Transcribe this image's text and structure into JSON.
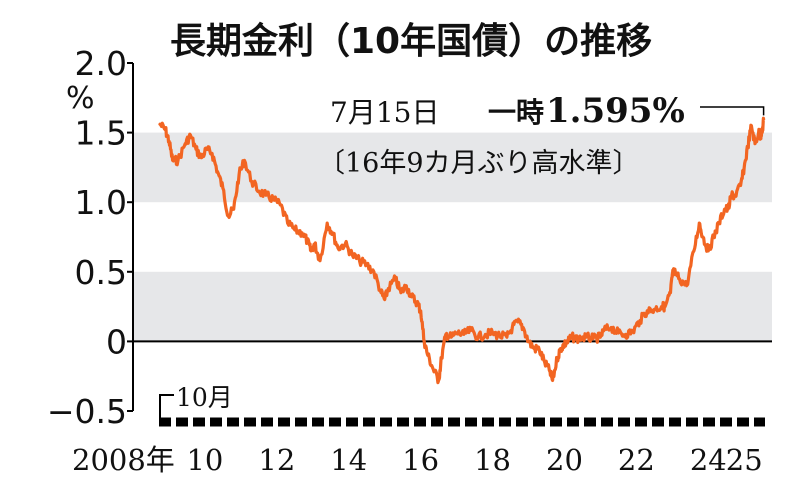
{
  "chart_data": {
    "type": "line",
    "title": "長期金利（10年国債）の推移",
    "ylabel": "%",
    "ylim": [
      -0.5,
      2.0
    ],
    "yticks": [
      {
        "value": 2.0,
        "label": "2.0"
      },
      {
        "value": 1.5,
        "label": "1.5"
      },
      {
        "value": 1.0,
        "label": "1.0"
      },
      {
        "value": 0.5,
        "label": "0.5"
      },
      {
        "value": 0,
        "label": "0"
      },
      {
        "value": -0.5,
        "label": "−0.5"
      }
    ],
    "shaded_bands": [
      [
        0,
        0.5
      ],
      [
        1.0,
        1.5
      ]
    ],
    "xlim": [
      2008.75,
      2025.55
    ],
    "xticks": [
      {
        "value": 2008.75,
        "label": "2008年"
      },
      {
        "value": 2010,
        "label": "10"
      },
      {
        "value": 2012,
        "label": "12"
      },
      {
        "value": 2014,
        "label": "14"
      },
      {
        "value": 2016,
        "label": "16"
      },
      {
        "value": 2018,
        "label": "18"
      },
      {
        "value": 2020,
        "label": "20"
      },
      {
        "value": 2022,
        "label": "22"
      },
      {
        "value": 2024,
        "label": "24"
      },
      {
        "value": 2025,
        "label": "25"
      }
    ],
    "start_marker_label": "10月",
    "annotation": {
      "date_label": "7月15日",
      "prefix": "一時",
      "value_label": "1.595%",
      "note": "〔16年9カ月ぶり高水準〕",
      "x": 2025.54,
      "y": 1.595
    },
    "colors": {
      "line": "#f26522",
      "band": "#e6e7e9",
      "axis": "#000000"
    },
    "series": [
      {
        "x": [
          2008.75,
          2008.9,
          2009.0,
          2009.1,
          2009.25,
          2009.45,
          2009.6,
          2009.75,
          2009.9,
          2010.05,
          2010.2,
          2010.35,
          2010.5,
          2010.65,
          2010.8,
          2010.95,
          2011.1,
          2011.3,
          2011.5,
          2011.7,
          2011.9,
          2012.1,
          2012.3,
          2012.5,
          2012.7,
          2012.85,
          2012.95,
          2013.05,
          2013.2,
          2013.4,
          2013.55,
          2013.7,
          2013.9,
          2014.1,
          2014.3,
          2014.5,
          2014.7,
          2014.9,
          2015.0,
          2015.1,
          2015.3,
          2015.45,
          2015.6,
          2015.75,
          2015.9,
          2016.0,
          2016.1,
          2016.2,
          2016.35,
          2016.5,
          2016.58,
          2016.7,
          2016.85,
          2017.0,
          2017.2,
          2017.4,
          2017.6,
          2017.8,
          2018.0,
          2018.2,
          2018.4,
          2018.55,
          2018.7,
          2018.85,
          2019.0,
          2019.15,
          2019.3,
          2019.45,
          2019.6,
          2019.67,
          2019.8,
          2019.9,
          2020.0,
          2020.1,
          2020.2,
          2020.4,
          2020.6,
          2020.8,
          2021.0,
          2021.1,
          2021.3,
          2021.5,
          2021.7,
          2021.9,
          2022.1,
          2022.3,
          2022.5,
          2022.7,
          2022.8,
          2022.95,
          2023.0,
          2023.05,
          2023.2,
          2023.4,
          2023.6,
          2023.75,
          2023.85,
          2024.0,
          2024.15,
          2024.3,
          2024.45,
          2024.55,
          2024.65,
          2024.75,
          2024.9,
          2025.0,
          2025.1,
          2025.2,
          2025.3,
          2025.4,
          2025.45,
          2025.5,
          2025.54
        ],
        "values": [
          1.56,
          1.52,
          1.44,
          1.3,
          1.3,
          1.42,
          1.48,
          1.38,
          1.32,
          1.38,
          1.35,
          1.22,
          1.1,
          0.9,
          0.95,
          1.2,
          1.3,
          1.15,
          1.08,
          1.05,
          1.02,
          0.98,
          0.85,
          0.8,
          0.78,
          0.72,
          0.65,
          0.7,
          0.58,
          0.85,
          0.78,
          0.67,
          0.7,
          0.62,
          0.58,
          0.55,
          0.5,
          0.35,
          0.3,
          0.38,
          0.45,
          0.35,
          0.4,
          0.32,
          0.28,
          0.22,
          0.0,
          -0.1,
          -0.2,
          -0.28,
          -0.12,
          0.05,
          0.03,
          0.06,
          0.05,
          0.08,
          0.03,
          0.05,
          0.06,
          0.04,
          0.03,
          0.1,
          0.14,
          0.1,
          0.0,
          -0.05,
          -0.06,
          -0.15,
          -0.22,
          -0.28,
          -0.12,
          -0.05,
          -0.02,
          0.0,
          0.03,
          0.02,
          0.03,
          0.02,
          0.03,
          0.08,
          0.1,
          0.06,
          0.05,
          0.07,
          0.15,
          0.22,
          0.23,
          0.25,
          0.25,
          0.35,
          0.48,
          0.5,
          0.45,
          0.4,
          0.65,
          0.85,
          0.75,
          0.65,
          0.75,
          0.85,
          0.95,
          0.95,
          1.05,
          1.05,
          1.12,
          1.25,
          1.4,
          1.55,
          1.42,
          1.5,
          1.48,
          1.5,
          1.595
        ]
      }
    ]
  }
}
